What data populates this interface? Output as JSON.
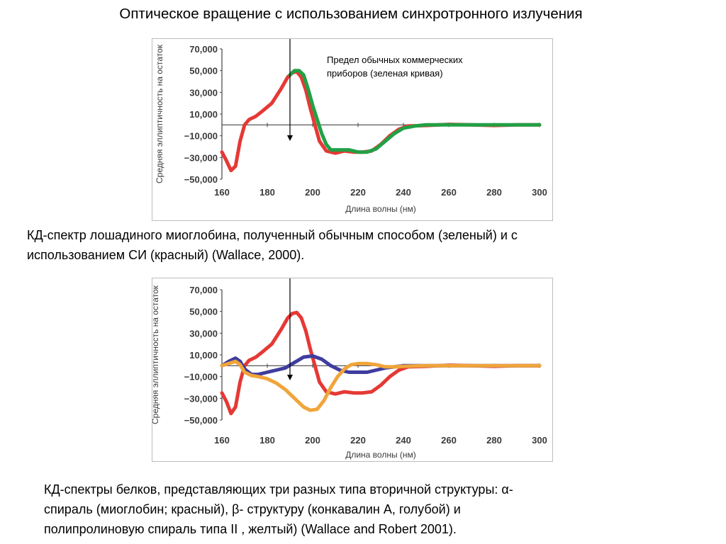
{
  "title": "Оптическое вращение с использованием синхротронного излучения",
  "caption1": {
    "line1": "КД-спектр лошадиного миоглобина, полученный обычным способом (зеленый) и  с",
    "line2": "использованием СИ (красный) (Wallace, 2000)."
  },
  "caption2": {
    "line1": "КД-спектры белков, представляющих три разных типа вторичной структуры:  α-",
    "line2": "спираль (миоглобин; красный), β- структуру (конкавалин А, голубой) и",
    "line3": "полипролиновую спираль типа II , желтый) (Wallace and Robert 2001)."
  },
  "chart_data": [
    {
      "type": "line",
      "xlabel": "Длина волны (нм)",
      "ylabel": "Средняя эллиптичность на остаток",
      "xlim": [
        160,
        300
      ],
      "ylim": [
        -50000,
        70000
      ],
      "xticks": [
        "160",
        "180",
        "200",
        "220",
        "240",
        "260",
        "280",
        "300"
      ],
      "yticks": [
        "70,000",
        "50,000",
        "30,000",
        "10,000",
        "−10,000",
        "−30,000",
        "−50,000"
      ],
      "annotation": {
        "line1": "Предел обычных коммерческих",
        "line2": "приборов (зеленая кривая)",
        "marker_x": 190
      },
      "series": [
        {
          "color": "#e53935",
          "x": [
            160,
            162,
            164,
            166,
            168,
            170,
            172,
            175,
            178,
            182,
            186,
            189,
            191,
            193,
            195,
            197,
            199,
            201,
            203,
            206,
            210,
            214,
            218,
            222,
            226,
            230,
            234,
            238,
            242,
            250,
            260,
            270,
            280,
            290,
            300
          ],
          "y": [
            -25000,
            -33000,
            -42000,
            -38000,
            -15000,
            0,
            5000,
            8000,
            13000,
            20000,
            33000,
            44000,
            48000,
            49000,
            44000,
            32000,
            15000,
            0,
            -15000,
            -24000,
            -26000,
            -24000,
            -25000,
            -25000,
            -24000,
            -18000,
            -10000,
            -4000,
            -1000,
            -500,
            500,
            0,
            -500,
            0,
            0
          ]
        },
        {
          "color": "#22a046",
          "x": [
            190,
            192,
            194,
            196,
            198,
            200,
            202,
            204,
            206,
            208,
            212,
            216,
            220,
            224,
            228,
            232,
            236,
            240,
            245,
            250,
            260,
            270,
            280,
            290,
            300
          ],
          "y": [
            46000,
            50000,
            50000,
            46000,
            33000,
            18000,
            5000,
            -8000,
            -18000,
            -23000,
            -23000,
            -23000,
            -25000,
            -25000,
            -22000,
            -15000,
            -8000,
            -3000,
            -1000,
            0,
            0,
            0,
            0,
            0,
            0
          ]
        }
      ]
    },
    {
      "type": "line",
      "xlabel": "Длина волны (нм)",
      "ylabel": "Средняя эллиптичность на остаток",
      "xlim": [
        160,
        300
      ],
      "ylim": [
        -50000,
        70000
      ],
      "xticks": [
        "160",
        "180",
        "200",
        "220",
        "240",
        "260",
        "280",
        "300"
      ],
      "yticks": [
        "70,000",
        "50,000",
        "30,000",
        "10,000",
        "−10,000",
        "−30,000",
        "−50,000"
      ],
      "marker_x": 190,
      "series": [
        {
          "color": "#e53935",
          "x": [
            160,
            162,
            164,
            166,
            168,
            170,
            172,
            175,
            178,
            182,
            186,
            189,
            191,
            193,
            195,
            197,
            199,
            201,
            203,
            206,
            210,
            214,
            218,
            222,
            226,
            230,
            234,
            238,
            242,
            250,
            260,
            270,
            280,
            290,
            300
          ],
          "y": [
            -25000,
            -33000,
            -44000,
            -38000,
            -15000,
            0,
            5000,
            8000,
            13000,
            20000,
            33000,
            44000,
            48000,
            49000,
            44000,
            32000,
            15000,
            0,
            -15000,
            -24000,
            -26000,
            -24000,
            -25000,
            -25000,
            -24000,
            -18000,
            -10000,
            -4000,
            -1000,
            -500,
            500,
            0,
            -500,
            0,
            0
          ]
        },
        {
          "color": "#3f3d9e",
          "x": [
            160,
            163,
            166,
            168,
            170,
            173,
            176,
            180,
            184,
            188,
            192,
            196,
            200,
            204,
            208,
            212,
            216,
            220,
            224,
            228,
            232,
            236,
            240,
            250,
            260,
            270,
            280,
            290,
            300
          ],
          "y": [
            0,
            4000,
            7000,
            4000,
            -3000,
            -8000,
            -8000,
            -6000,
            -4000,
            -2000,
            3000,
            8000,
            9000,
            6000,
            0,
            -4000,
            -6000,
            -6000,
            -6000,
            -4000,
            -2000,
            -1000,
            0,
            0,
            0,
            0,
            0,
            0,
            0
          ]
        },
        {
          "color": "#f0a53a",
          "x": [
            160,
            163,
            166,
            168,
            170,
            173,
            176,
            180,
            184,
            188,
            192,
            196,
            199,
            202,
            205,
            208,
            211,
            214,
            217,
            220,
            224,
            228,
            232,
            236,
            240,
            250,
            260,
            270,
            280,
            290,
            300
          ],
          "y": [
            0,
            2000,
            4000,
            1000,
            -6000,
            -9000,
            -10000,
            -12000,
            -16000,
            -22000,
            -30000,
            -38000,
            -41000,
            -40000,
            -32000,
            -20000,
            -10000,
            -3000,
            1000,
            2000,
            2000,
            1000,
            -1000,
            -1000,
            -500,
            0,
            0,
            0,
            0,
            0,
            0
          ]
        }
      ]
    }
  ]
}
